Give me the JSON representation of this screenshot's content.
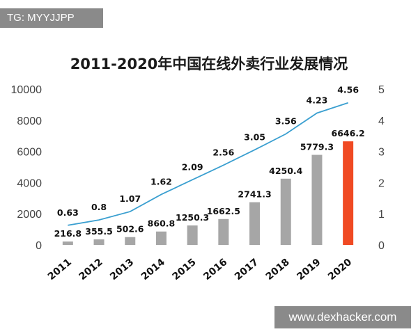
{
  "watermark_top": "TG: MYYJJPP",
  "watermark_bottom": "www.dexhacker.com",
  "chart_data": {
    "type": "bar",
    "title": "2011-2020年中国在线外卖行业发展情况",
    "categories": [
      "2011",
      "2012",
      "2013",
      "2014",
      "2015",
      "2016",
      "2017",
      "2018",
      "2019",
      "2020"
    ],
    "series": [
      {
        "type": "bar",
        "axis": "left",
        "values": [
          216.8,
          355.5,
          502.6,
          860.8,
          1250.3,
          1662.5,
          2741.3,
          4250.4,
          5779.3,
          6646.2
        ],
        "color": "#a6a6a6",
        "highlight_index": 9,
        "highlight_color": "#f04a23"
      },
      {
        "type": "line",
        "axis": "right",
        "values": [
          0.63,
          0.8,
          1.07,
          1.62,
          2.09,
          2.56,
          3.05,
          3.56,
          4.23,
          4.56
        ],
        "color": "#3a9fd0"
      }
    ],
    "y_left": {
      "lim": [
        0,
        10000
      ],
      "ticks": [
        "0",
        "2000",
        "4000",
        "6000",
        "8000",
        "10000"
      ]
    },
    "y_right": {
      "lim": [
        0,
        5
      ],
      "ticks": [
        "0",
        "1",
        "2",
        "3",
        "4",
        "5"
      ]
    },
    "grid": false,
    "legend": "none"
  }
}
